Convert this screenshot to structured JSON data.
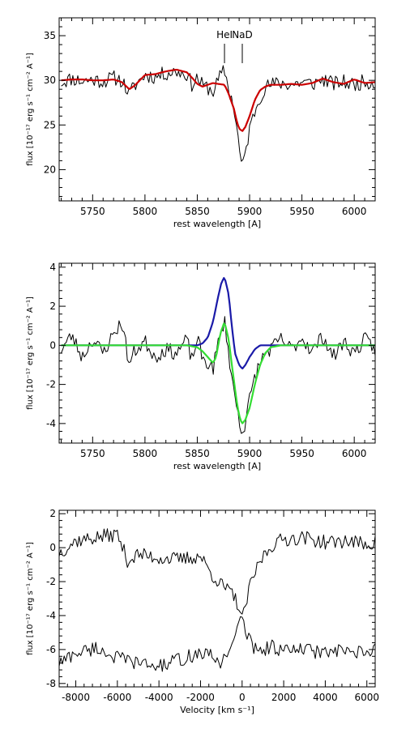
{
  "chart_data": [
    {
      "type": "line",
      "title": "",
      "xlabel": "rest wavelength [A]",
      "ylabel": "flux [10⁻¹⁷ erg s⁻¹ cm⁻² A⁻¹]",
      "xlim": [
        5718,
        6020
      ],
      "ylim": [
        16.5,
        37
      ],
      "xticks": [
        5750,
        5800,
        5850,
        5900,
        5950,
        6000
      ],
      "xtick_labels": [
        "5750",
        "5800",
        "5850",
        "5900",
        "5950",
        "6000"
      ],
      "yticks": [
        20,
        25,
        30,
        35
      ],
      "ytick_labels": [
        "20",
        "25",
        "30",
        "35"
      ],
      "annotations": [
        {
          "text": "HeI",
          "x": 5876
        },
        {
          "text": "NaD",
          "x": 5893
        }
      ],
      "series": [
        {
          "name": "",
          "color": "#000000",
          "x": [
            5720,
            5730,
            5740,
            5750,
            5760,
            5770,
            5778,
            5785,
            5790,
            5800,
            5810,
            5820,
            5830,
            5840,
            5845,
            5850,
            5855,
            5860,
            5865,
            5870,
            5876,
            5880,
            5885,
            5888,
            5890,
            5893,
            5896,
            5900,
            5905,
            5910,
            5915,
            5920,
            5930,
            5940,
            5950,
            5960,
            5970,
            5980,
            5990,
            6000,
            6010,
            6020
          ],
          "y": [
            29.8,
            30.2,
            29.9,
            30.1,
            29.9,
            30.3,
            30.0,
            28.4,
            29.4,
            30.6,
            30.4,
            30.8,
            31.0,
            30.7,
            29.5,
            30.3,
            29.4,
            29.2,
            28.7,
            30.0,
            31.2,
            29.0,
            27.0,
            24.5,
            22.5,
            20.0,
            22.0,
            24.5,
            26.6,
            28.2,
            29.2,
            29.5,
            29.7,
            29.5,
            29.8,
            29.6,
            30.1,
            29.6,
            29.8,
            29.5,
            29.9,
            29.7
          ]
        },
        {
          "name": "",
          "color": "#cc0000",
          "x": [
            5720,
            5730,
            5740,
            5750,
            5760,
            5770,
            5778,
            5785,
            5790,
            5800,
            5810,
            5820,
            5830,
            5840,
            5845,
            5850,
            5855,
            5860,
            5865,
            5870,
            5876,
            5880,
            5885,
            5888,
            5890,
            5893,
            5896,
            5900,
            5905,
            5910,
            5915,
            5920,
            5930,
            5940,
            5950,
            5960,
            5970,
            5980,
            5990,
            6000,
            6010,
            6020
          ],
          "y": [
            30.0,
            30.1,
            30.1,
            30.0,
            30.0,
            30.1,
            29.8,
            29.0,
            29.4,
            30.6,
            30.7,
            31.0,
            31.2,
            30.9,
            30.3,
            29.6,
            29.3,
            29.5,
            29.7,
            29.6,
            29.5,
            28.5,
            26.8,
            25.3,
            24.6,
            24.3,
            24.8,
            26.0,
            27.8,
            28.9,
            29.3,
            29.5,
            29.5,
            29.6,
            29.5,
            29.7,
            30.2,
            29.8,
            29.6,
            30.1,
            29.7,
            29.8
          ]
        }
      ]
    },
    {
      "type": "line",
      "title": "",
      "xlabel": "rest wavelength [A]",
      "ylabel": "flux [10⁻¹⁷ erg s⁻¹ cm⁻² A⁻¹]",
      "xlim": [
        5718,
        6020
      ],
      "ylim": [
        -5,
        4.2
      ],
      "xticks": [
        5750,
        5800,
        5850,
        5900,
        5950,
        6000
      ],
      "xtick_labels": [
        "5750",
        "5800",
        "5850",
        "5900",
        "5950",
        "6000"
      ],
      "yticks": [
        -4,
        -2,
        0,
        2,
        4
      ],
      "ytick_labels": [
        "-4",
        "-2",
        "0",
        "2",
        "4"
      ],
      "series": [
        {
          "name": "",
          "color": "#000000",
          "x": [
            5720,
            5730,
            5740,
            5750,
            5760,
            5770,
            5778,
            5785,
            5790,
            5800,
            5810,
            5820,
            5830,
            5840,
            5845,
            5850,
            5855,
            5860,
            5865,
            5870,
            5876,
            5880,
            5885,
            5888,
            5890,
            5893,
            5896,
            5900,
            5905,
            5910,
            5915,
            5920,
            5930,
            5940,
            5950,
            5960,
            5970,
            5980,
            5990,
            6000,
            6010,
            6020
          ],
          "y": [
            -0.2,
            0.5,
            -0.6,
            0.3,
            -0.4,
            0.6,
            1.2,
            -1.0,
            -0.3,
            0.2,
            -0.6,
            -0.2,
            -0.4,
            0.3,
            -0.8,
            0.4,
            -0.7,
            -0.9,
            -1.2,
            0.1,
            1.3,
            -0.4,
            -2.4,
            -3.2,
            -3.8,
            -4.5,
            -3.9,
            -2.8,
            -1.6,
            -0.9,
            -0.4,
            -0.2,
            0.3,
            -0.2,
            0.4,
            -0.3,
            0.5,
            -0.6,
            0.2,
            -0.4,
            0.3,
            -0.2
          ]
        },
        {
          "name": "",
          "color": "#1a1aa8",
          "x": [
            5720,
            5840,
            5850,
            5855,
            5860,
            5865,
            5870,
            5873,
            5876,
            5880,
            5883,
            5886,
            5890,
            5893,
            5896,
            5900,
            5905,
            5910,
            5915,
            5920,
            5930,
            6020
          ],
          "y": [
            0.0,
            0.0,
            0.0,
            0.1,
            0.4,
            1.2,
            2.5,
            3.2,
            3.5,
            2.6,
            1.0,
            -0.4,
            -1.0,
            -1.2,
            -1.0,
            -0.6,
            -0.2,
            0.0,
            0.0,
            0.0,
            0.0,
            0.0
          ]
        },
        {
          "name": "",
          "color": "#33dd33",
          "x": [
            5720,
            5840,
            5850,
            5855,
            5860,
            5865,
            5868,
            5872,
            5876,
            5880,
            5884,
            5888,
            5891,
            5893,
            5896,
            5900,
            5905,
            5910,
            5915,
            5920,
            5930,
            6020
          ],
          "y": [
            0.0,
            0.0,
            -0.1,
            -0.3,
            -0.6,
            -0.9,
            -0.6,
            0.6,
            1.2,
            0.3,
            -1.4,
            -3.0,
            -3.8,
            -4.0,
            -3.8,
            -3.2,
            -2.0,
            -1.0,
            -0.4,
            -0.1,
            0.0,
            0.0
          ]
        }
      ]
    },
    {
      "type": "line",
      "title": "",
      "xlabel": "Velocity [km s⁻¹]",
      "ylabel": "flux [10⁻¹⁷ erg s⁻¹ cm⁻² A⁻¹]",
      "xlim": [
        -8800,
        6400
      ],
      "ylim": [
        -8.2,
        2.2
      ],
      "xticks": [
        -8000,
        -6000,
        -4000,
        -2000,
        0,
        2000,
        4000,
        6000
      ],
      "xtick_labels": [
        "-8000",
        "-6000",
        "-4000",
        "-2000",
        "0",
        "2000",
        "4000",
        "6000"
      ],
      "yticks": [
        -8,
        -6,
        -4,
        -2,
        0,
        2
      ],
      "ytick_labels": [
        "-8",
        "-6",
        "-4",
        "-2",
        "0",
        "2"
      ],
      "series": [
        {
          "name": "",
          "color": "#000000",
          "x": [
            -8800,
            -8000,
            -7000,
            -6000,
            -5500,
            -5000,
            -4000,
            -3000,
            -2000,
            -1500,
            -1000,
            -500,
            -200,
            0,
            200,
            500,
            1000,
            1500,
            2000,
            3000,
            4000,
            5000,
            6000,
            6400
          ],
          "y": [
            -0.3,
            0.4,
            0.6,
            0.8,
            -0.8,
            -0.4,
            -0.6,
            -0.7,
            -0.5,
            -1.5,
            -2.2,
            -2.7,
            -3.3,
            -4.3,
            -3.2,
            -1.8,
            -0.5,
            0.2,
            0.5,
            0.6,
            0.3,
            0.4,
            0.2,
            0.3
          ]
        },
        {
          "name": "",
          "color": "#000000",
          "x": [
            -8800,
            -8000,
            -7000,
            -6000,
            -5000,
            -4000,
            -3000,
            -2000,
            -1500,
            -1000,
            -500,
            -200,
            0,
            200,
            500,
            1000,
            1500,
            2000,
            3000,
            4000,
            5000,
            6000,
            6400
          ],
          "y": [
            -6.8,
            -6.2,
            -5.9,
            -6.5,
            -6.8,
            -7.0,
            -6.6,
            -6.2,
            -6.4,
            -6.8,
            -5.6,
            -4.8,
            -4.1,
            -5.0,
            -5.8,
            -6.0,
            -5.8,
            -6.1,
            -6.0,
            -6.2,
            -6.1,
            -6.3,
            -6.0
          ]
        }
      ]
    }
  ]
}
